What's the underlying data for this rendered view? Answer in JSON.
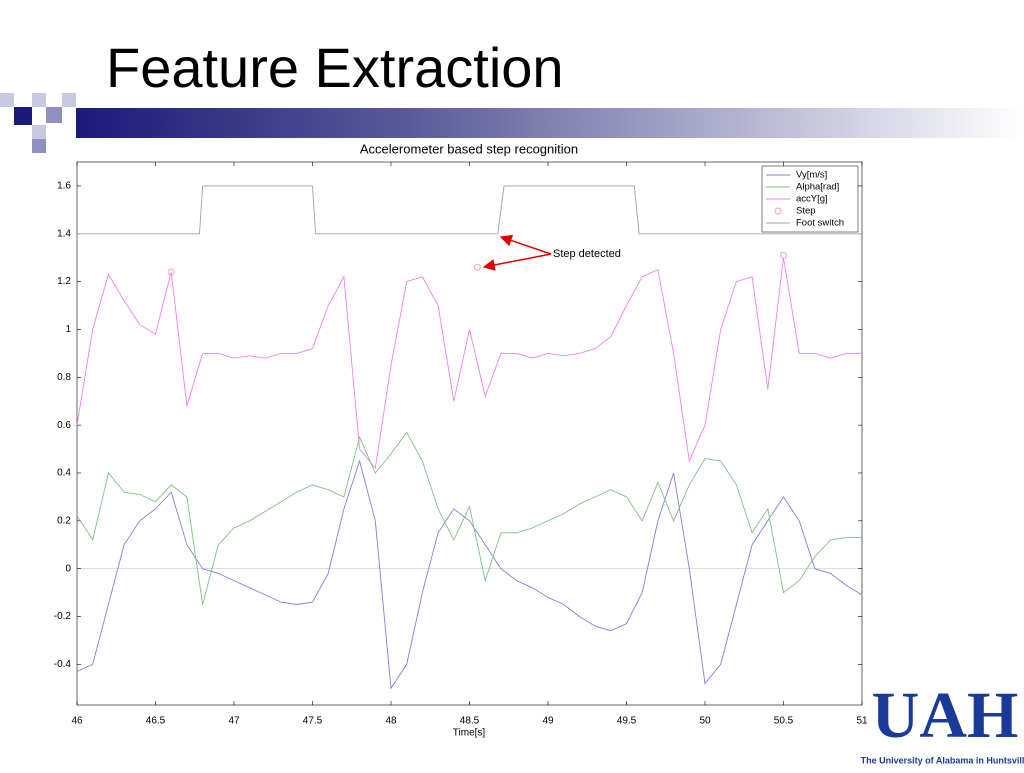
{
  "slide_title": "Feature Extraction",
  "logo": {
    "text": "UAH",
    "subtitle": "The University of Alabama in Huntsville"
  },
  "chart_data": {
    "type": "line",
    "title": "Accelerometer based step recognition",
    "x_label": "Time[s]",
    "xlim": [
      46,
      51
    ],
    "xticks": [
      46,
      46.5,
      47,
      47.5,
      48,
      48.5,
      49,
      49.5,
      50,
      50.5,
      51
    ],
    "ylim": [
      -0.57,
      1.7
    ],
    "yticks": [
      -0.4,
      -0.2,
      0,
      0.2,
      0.4,
      0.6,
      0.8,
      1,
      1.2,
      1.4,
      1.6
    ],
    "legend": "upper right",
    "annotation": "Step detected",
    "x": [
      46.0,
      46.1,
      46.2,
      46.3,
      46.4,
      46.5,
      46.6,
      46.7,
      46.8,
      46.9,
      47.0,
      47.1,
      47.2,
      47.3,
      47.4,
      47.5,
      47.6,
      47.7,
      47.8,
      47.9,
      48.0,
      48.1,
      48.2,
      48.3,
      48.4,
      48.5,
      48.6,
      48.7,
      48.8,
      48.9,
      49.0,
      49.1,
      49.2,
      49.3,
      49.4,
      49.5,
      49.6,
      49.7,
      49.8,
      49.9,
      50.0,
      50.1,
      50.2,
      50.3,
      50.4,
      50.5,
      50.6,
      50.7,
      50.8,
      50.9,
      51.0
    ],
    "series": [
      {
        "name": "Vy[m/s]",
        "color": "#8080e0",
        "values": [
          -0.43,
          -0.4,
          -0.15,
          0.1,
          0.2,
          0.25,
          0.32,
          0.1,
          0.0,
          -0.02,
          -0.05,
          -0.08,
          -0.11,
          -0.14,
          -0.15,
          -0.14,
          -0.02,
          0.25,
          0.45,
          0.2,
          -0.5,
          -0.4,
          -0.1,
          0.15,
          0.25,
          0.2,
          0.1,
          0.0,
          -0.05,
          -0.08,
          -0.12,
          -0.15,
          -0.2,
          -0.24,
          -0.26,
          -0.23,
          -0.1,
          0.2,
          0.4,
          0.0,
          -0.48,
          -0.4,
          -0.15,
          0.1,
          0.2,
          0.3,
          0.2,
          0.0,
          -0.02,
          -0.07,
          -0.11
        ]
      },
      {
        "name": "Alpha[rad]",
        "color": "#80c080",
        "values": [
          0.22,
          0.12,
          0.4,
          0.32,
          0.31,
          0.28,
          0.35,
          0.3,
          -0.15,
          0.1,
          0.17,
          0.2,
          0.24,
          0.28,
          0.32,
          0.35,
          0.33,
          0.3,
          0.55,
          0.4,
          0.48,
          0.57,
          0.45,
          0.25,
          0.12,
          0.26,
          -0.05,
          0.15,
          0.15,
          0.17,
          0.2,
          0.23,
          0.27,
          0.3,
          0.33,
          0.3,
          0.2,
          0.36,
          0.2,
          0.35,
          0.46,
          0.45,
          0.35,
          0.15,
          0.25,
          -0.1,
          -0.05,
          0.05,
          0.12,
          0.13,
          0.13
        ]
      },
      {
        "name": "accY[g]",
        "color": "#f080f0",
        "values": [
          0.6,
          1.0,
          1.23,
          1.12,
          1.02,
          0.98,
          1.24,
          0.68,
          0.9,
          0.9,
          0.88,
          0.89,
          0.88,
          0.9,
          0.9,
          0.92,
          1.1,
          1.22,
          0.5,
          0.42,
          0.85,
          1.2,
          1.22,
          1.1,
          0.7,
          1.0,
          0.72,
          0.9,
          0.9,
          0.88,
          0.9,
          0.89,
          0.9,
          0.92,
          0.97,
          1.1,
          1.22,
          1.25,
          0.9,
          0.45,
          0.6,
          1.0,
          1.2,
          1.22,
          0.75,
          1.3,
          0.9,
          0.9,
          0.88,
          0.9,
          0.9
        ]
      },
      {
        "name": "Step",
        "color": "#f0a0d0",
        "marker": "circle",
        "x": [
          46.6,
          48.55,
          50.5
        ],
        "values": [
          1.24,
          1.26,
          1.31
        ]
      },
      {
        "name": "Foot switch",
        "color": "#a0a0a0",
        "x": [
          46,
          46.78,
          46.8,
          47.5,
          47.52,
          48.68,
          48.72,
          49.55,
          49.58,
          51
        ],
        "values": [
          1.4,
          1.4,
          1.6,
          1.6,
          1.4,
          1.4,
          1.6,
          1.6,
          1.4,
          1.4
        ]
      }
    ]
  }
}
